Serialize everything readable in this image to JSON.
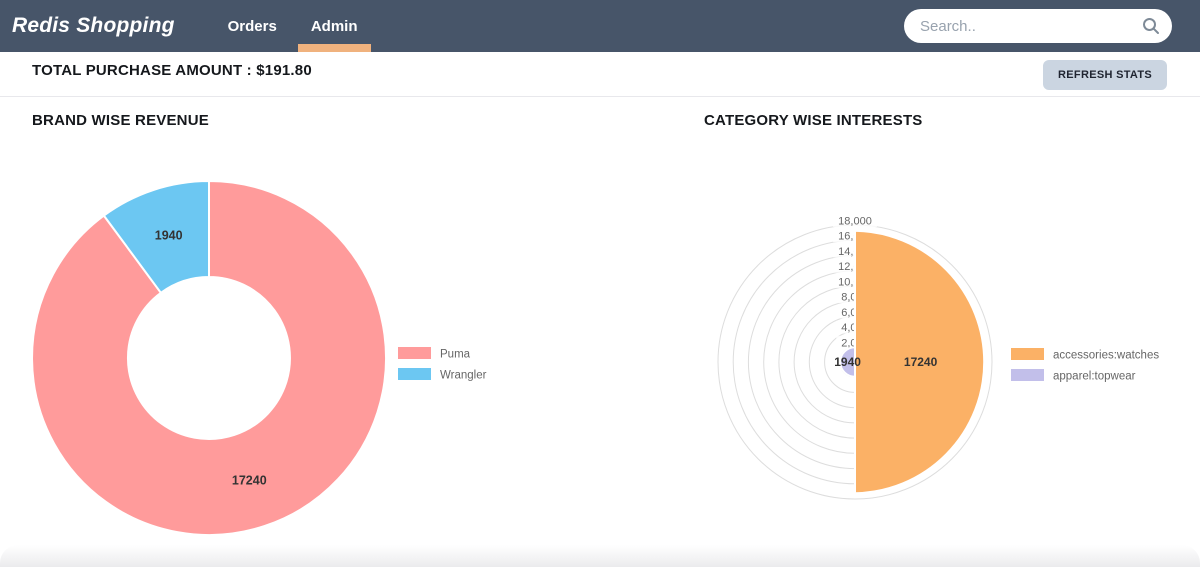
{
  "navbar": {
    "brand": "Redis Shopping",
    "items": [
      {
        "label": "Orders",
        "active": false
      },
      {
        "label": "Admin",
        "active": true
      }
    ],
    "search_placeholder": "Search..",
    "colors": {
      "bg": "#475569",
      "active_underline": "#F0B27E"
    }
  },
  "header": {
    "total_label": "TOTAL PURCHASE AMOUNT : $191.80",
    "refresh_button": "REFRESH STATS",
    "refresh_bg": "#CBD5E1"
  },
  "chart_data": [
    {
      "type": "pie",
      "subtype": "doughnut",
      "title": "BRAND WISE REVENUE",
      "labels": [
        "Puma",
        "Wrangler"
      ],
      "values": [
        17240,
        1940
      ],
      "colors": [
        "#FF9B9B",
        "#6CC7F2"
      ],
      "data_labels": [
        "17240",
        "1940"
      ],
      "legend_position": "right"
    },
    {
      "type": "pie",
      "subtype": "polarArea",
      "title": "CATEGORY WISE INTERESTS",
      "labels": [
        "accessories:watches",
        "apparel:topwear"
      ],
      "values": [
        17240,
        1940
      ],
      "colors": [
        "#FBB166",
        "#C2BFEA"
      ],
      "data_labels": [
        "17240",
        "1940"
      ],
      "scale": {
        "min": 0,
        "max": 18000,
        "step": 2000,
        "tick_labels": [
          "2,000",
          "4,000",
          "6,000",
          "8,000",
          "10,000",
          "12,000",
          "14,000",
          "16,000",
          "18,000"
        ]
      },
      "grid": true,
      "legend_position": "right"
    }
  ]
}
